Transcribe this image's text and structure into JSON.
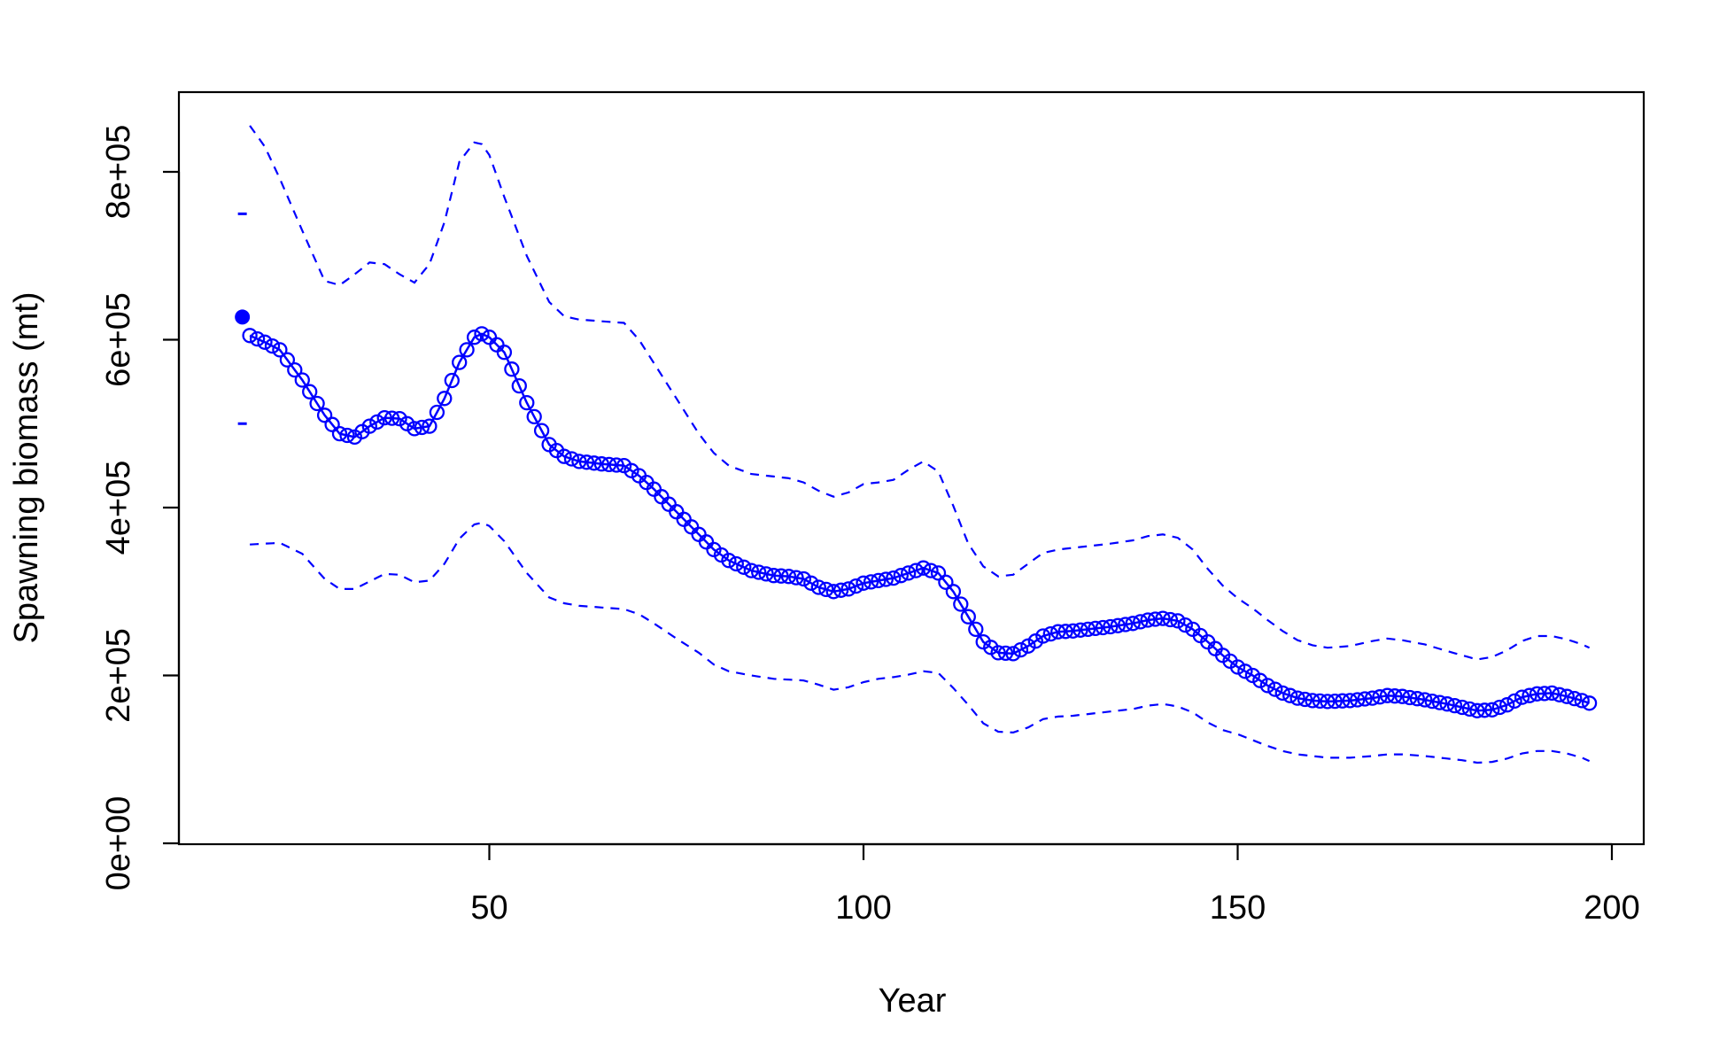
{
  "chart_data": {
    "type": "line",
    "title": "",
    "xlabel": "Year",
    "ylabel": "Spawning biomass (mt)",
    "xlim": [
      10,
      205
    ],
    "ylim": [
      0,
      900000
    ],
    "x_ticks": [
      50,
      100,
      150,
      200
    ],
    "x_tick_labels": [
      "50",
      "100",
      "150",
      "200"
    ],
    "y_ticks": [
      0,
      200000,
      400000,
      600000,
      800000
    ],
    "y_tick_labels": [
      "0e+00",
      "2e+05",
      "4e+05",
      "6e+05",
      "8e+05"
    ],
    "grid": false,
    "legend": "none",
    "colors": {
      "series": "#0000ff",
      "axes": "#000000"
    },
    "virgin": {
      "x": 17,
      "value": 627000,
      "upper": 750000,
      "lower": 500000
    },
    "anchors": {
      "year": [
        18,
        20,
        22,
        25,
        28,
        30,
        32,
        34,
        36,
        38,
        40,
        42,
        44,
        46,
        48,
        49,
        50,
        52,
        55,
        58,
        60,
        62,
        65,
        68,
        70,
        72,
        75,
        78,
        80,
        82,
        85,
        88,
        90,
        92,
        94,
        96,
        98,
        100,
        102,
        104,
        106,
        108,
        110,
        112,
        114,
        116,
        118,
        120,
        122,
        124,
        126,
        128,
        130,
        133,
        136,
        138,
        140,
        142,
        144,
        146,
        148,
        150,
        152,
        154,
        156,
        158,
        160,
        162,
        165,
        168,
        170,
        172,
        175,
        178,
        180,
        182,
        184,
        186,
        188,
        190,
        192,
        194,
        196,
        197
      ],
      "value": [
        605000,
        597000,
        588000,
        552000,
        510000,
        488000,
        484000,
        497000,
        507000,
        506000,
        494000,
        497000,
        530000,
        573000,
        603000,
        607000,
        603000,
        585000,
        525000,
        475000,
        461000,
        455000,
        452000,
        450000,
        438000,
        422000,
        395000,
        368000,
        350000,
        337000,
        325000,
        319000,
        318000,
        315000,
        305000,
        300000,
        303000,
        310000,
        313000,
        316000,
        322000,
        328000,
        322000,
        300000,
        270000,
        240000,
        227000,
        226000,
        235000,
        247000,
        252000,
        253000,
        255000,
        258000,
        262000,
        266000,
        268000,
        265000,
        255000,
        240000,
        224000,
        210000,
        200000,
        188000,
        179000,
        173000,
        170000,
        169000,
        170000,
        173000,
        176000,
        175000,
        171000,
        166000,
        162000,
        158000,
        159000,
        165000,
        174000,
        178000,
        179000,
        175000,
        170000,
        167000
      ],
      "upper": [
        855000,
        830000,
        792000,
        730000,
        670000,
        665000,
        678000,
        692000,
        690000,
        678000,
        668000,
        690000,
        740000,
        812000,
        835000,
        833000,
        820000,
        770000,
        700000,
        645000,
        628000,
        624000,
        622000,
        620000,
        600000,
        572000,
        530000,
        488000,
        465000,
        450000,
        440000,
        437000,
        435000,
        430000,
        420000,
        413000,
        418000,
        428000,
        430000,
        433000,
        445000,
        455000,
        443000,
        402000,
        357000,
        330000,
        318000,
        320000,
        333000,
        346000,
        350000,
        352000,
        354000,
        357000,
        361000,
        366000,
        368000,
        364000,
        350000,
        327000,
        307000,
        292000,
        280000,
        266000,
        253000,
        242000,
        236000,
        233000,
        235000,
        241000,
        244000,
        242000,
        237000,
        229000,
        224000,
        219000,
        222000,
        230000,
        241000,
        247000,
        247000,
        243000,
        237000,
        233000
      ],
      "lower": [
        356000,
        357000,
        358000,
        345000,
        315000,
        303000,
        303000,
        312000,
        321000,
        320000,
        311000,
        313000,
        333000,
        363000,
        380000,
        382000,
        378000,
        360000,
        322000,
        293000,
        286000,
        283000,
        281000,
        279000,
        273000,
        262000,
        244000,
        227000,
        213000,
        205000,
        200000,
        196000,
        195000,
        194000,
        189000,
        183000,
        186000,
        192000,
        196000,
        198000,
        201000,
        205000,
        203000,
        185000,
        165000,
        143000,
        133000,
        132000,
        138000,
        148000,
        151000,
        152000,
        154000,
        157000,
        160000,
        164000,
        166000,
        163000,
        156000,
        144000,
        135000,
        130000,
        123000,
        116000,
        110000,
        106000,
        104000,
        102000,
        102000,
        104000,
        106000,
        106000,
        104000,
        101000,
        99000,
        96000,
        97000,
        101000,
        107000,
        110000,
        110000,
        107000,
        102000,
        98000
      ]
    }
  }
}
